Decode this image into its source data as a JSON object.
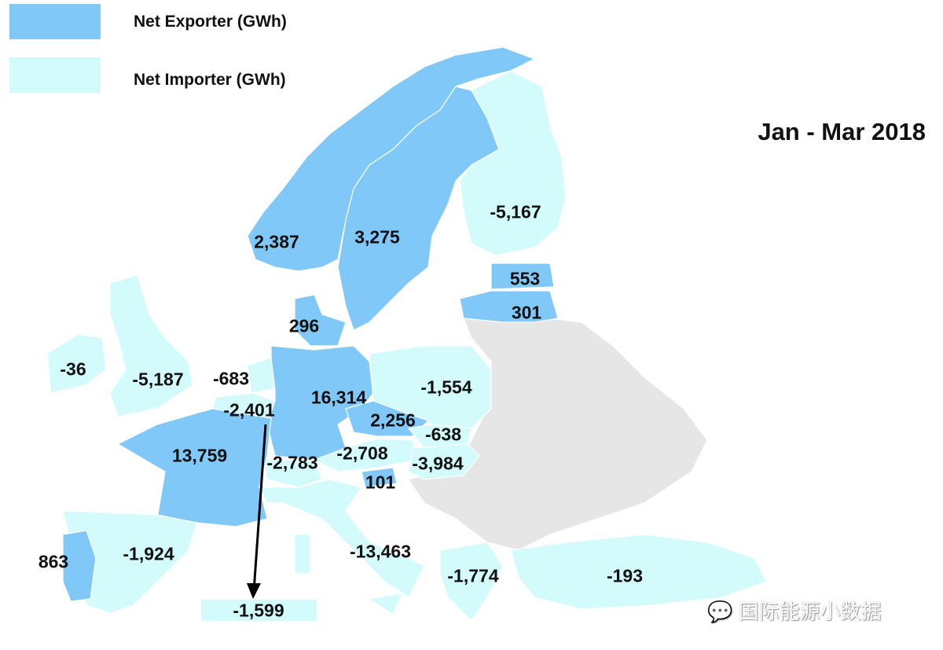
{
  "legend": {
    "exporter": {
      "label": "Net Exporter (GWh)",
      "color": "#80c8f8"
    },
    "importer": {
      "label": "Net Importer (GWh)",
      "color": "#d4fbfb"
    }
  },
  "title": "Jan - Mar 2018",
  "countries": {
    "norway": {
      "value": "2,387",
      "status": "exporter"
    },
    "sweden": {
      "value": "3,275",
      "status": "exporter"
    },
    "finland": {
      "value": "-5,167",
      "status": "importer"
    },
    "estonia": {
      "value": "553",
      "status": "exporter"
    },
    "latvia": {
      "value": "301",
      "status": "exporter"
    },
    "denmark": {
      "value": "296",
      "status": "exporter"
    },
    "ireland": {
      "value": "-36",
      "status": "importer"
    },
    "uk": {
      "value": "-5,187",
      "status": "importer"
    },
    "netherlands": {
      "value": "-683",
      "status": "importer"
    },
    "belgium": {
      "value": "-2,401",
      "status": "importer"
    },
    "luxembourg": {
      "value": "-1,599",
      "status": "importer"
    },
    "germany": {
      "value": "16,314",
      "status": "exporter"
    },
    "poland": {
      "value": "-1,554",
      "status": "importer"
    },
    "czechia": {
      "value": "2,256",
      "status": "exporter"
    },
    "slovakia": {
      "value": "-638",
      "status": "importer"
    },
    "austria": {
      "value": "-2,708",
      "status": "importer"
    },
    "hungary": {
      "value": "-3,984",
      "status": "importer"
    },
    "slovenia": {
      "value": "101",
      "status": "exporter"
    },
    "switzerland": {
      "value": "-2,783",
      "status": "importer"
    },
    "france": {
      "value": "13,759",
      "status": "exporter"
    },
    "spain": {
      "value": "-1,924",
      "status": "importer"
    },
    "portugal": {
      "value": "863",
      "status": "exporter"
    },
    "italy": {
      "value": "-13,463",
      "status": "importer"
    },
    "greece": {
      "value": "-1,774",
      "status": "importer"
    },
    "turkey": {
      "value": "-193",
      "status": "importer"
    }
  },
  "no_data_color": "#e6e6e6",
  "watermark": "国际能源小数据"
}
